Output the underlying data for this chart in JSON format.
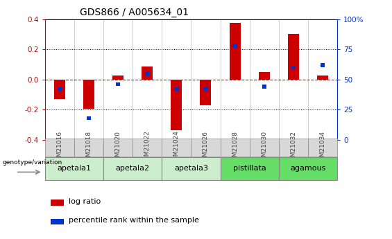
{
  "title": "GDS866 / A005634_01",
  "samples": [
    "GSM21016",
    "GSM21018",
    "GSM21020",
    "GSM21022",
    "GSM21024",
    "GSM21026",
    "GSM21028",
    "GSM21030",
    "GSM21032",
    "GSM21034"
  ],
  "log_ratio": [
    -0.13,
    -0.195,
    0.025,
    0.085,
    -0.335,
    -0.17,
    0.375,
    0.05,
    0.3,
    0.025
  ],
  "percentile_rank": [
    42,
    18,
    46,
    55,
    42,
    42,
    78,
    44,
    60,
    62
  ],
  "bar_width": 0.38,
  "blue_bar_height": 0.025,
  "blue_bar_width": 0.15,
  "groups": [
    {
      "label": "apetala1",
      "start": 0,
      "end": 2,
      "color": "#cceecc"
    },
    {
      "label": "apetala2",
      "start": 2,
      "end": 4,
      "color": "#cceecc"
    },
    {
      "label": "apetala3",
      "start": 4,
      "end": 6,
      "color": "#cceecc"
    },
    {
      "label": "pistillata",
      "start": 6,
      "end": 8,
      "color": "#66dd66"
    },
    {
      "label": "agamous",
      "start": 8,
      "end": 10,
      "color": "#66dd66"
    }
  ],
  "ylim": [
    -0.4,
    0.4
  ],
  "y2lim": [
    0,
    100
  ],
  "yticks": [
    -0.4,
    -0.2,
    0.0,
    0.2,
    0.4
  ],
  "y2ticks": [
    0,
    25,
    50,
    75,
    100
  ],
  "y2ticklabels": [
    "0",
    "25",
    "50",
    "75",
    "100%"
  ],
  "red_color": "#cc0000",
  "blue_color": "#0033cc",
  "zero_line_color": "#cc0000",
  "dot_grid_color": "#000000",
  "bg_color": "#ffffff",
  "sample_box_color": "#cccccc",
  "legend_red_label": "log ratio",
  "legend_blue_label": "percentile rank within the sample",
  "genotype_label": "genotype/variation"
}
